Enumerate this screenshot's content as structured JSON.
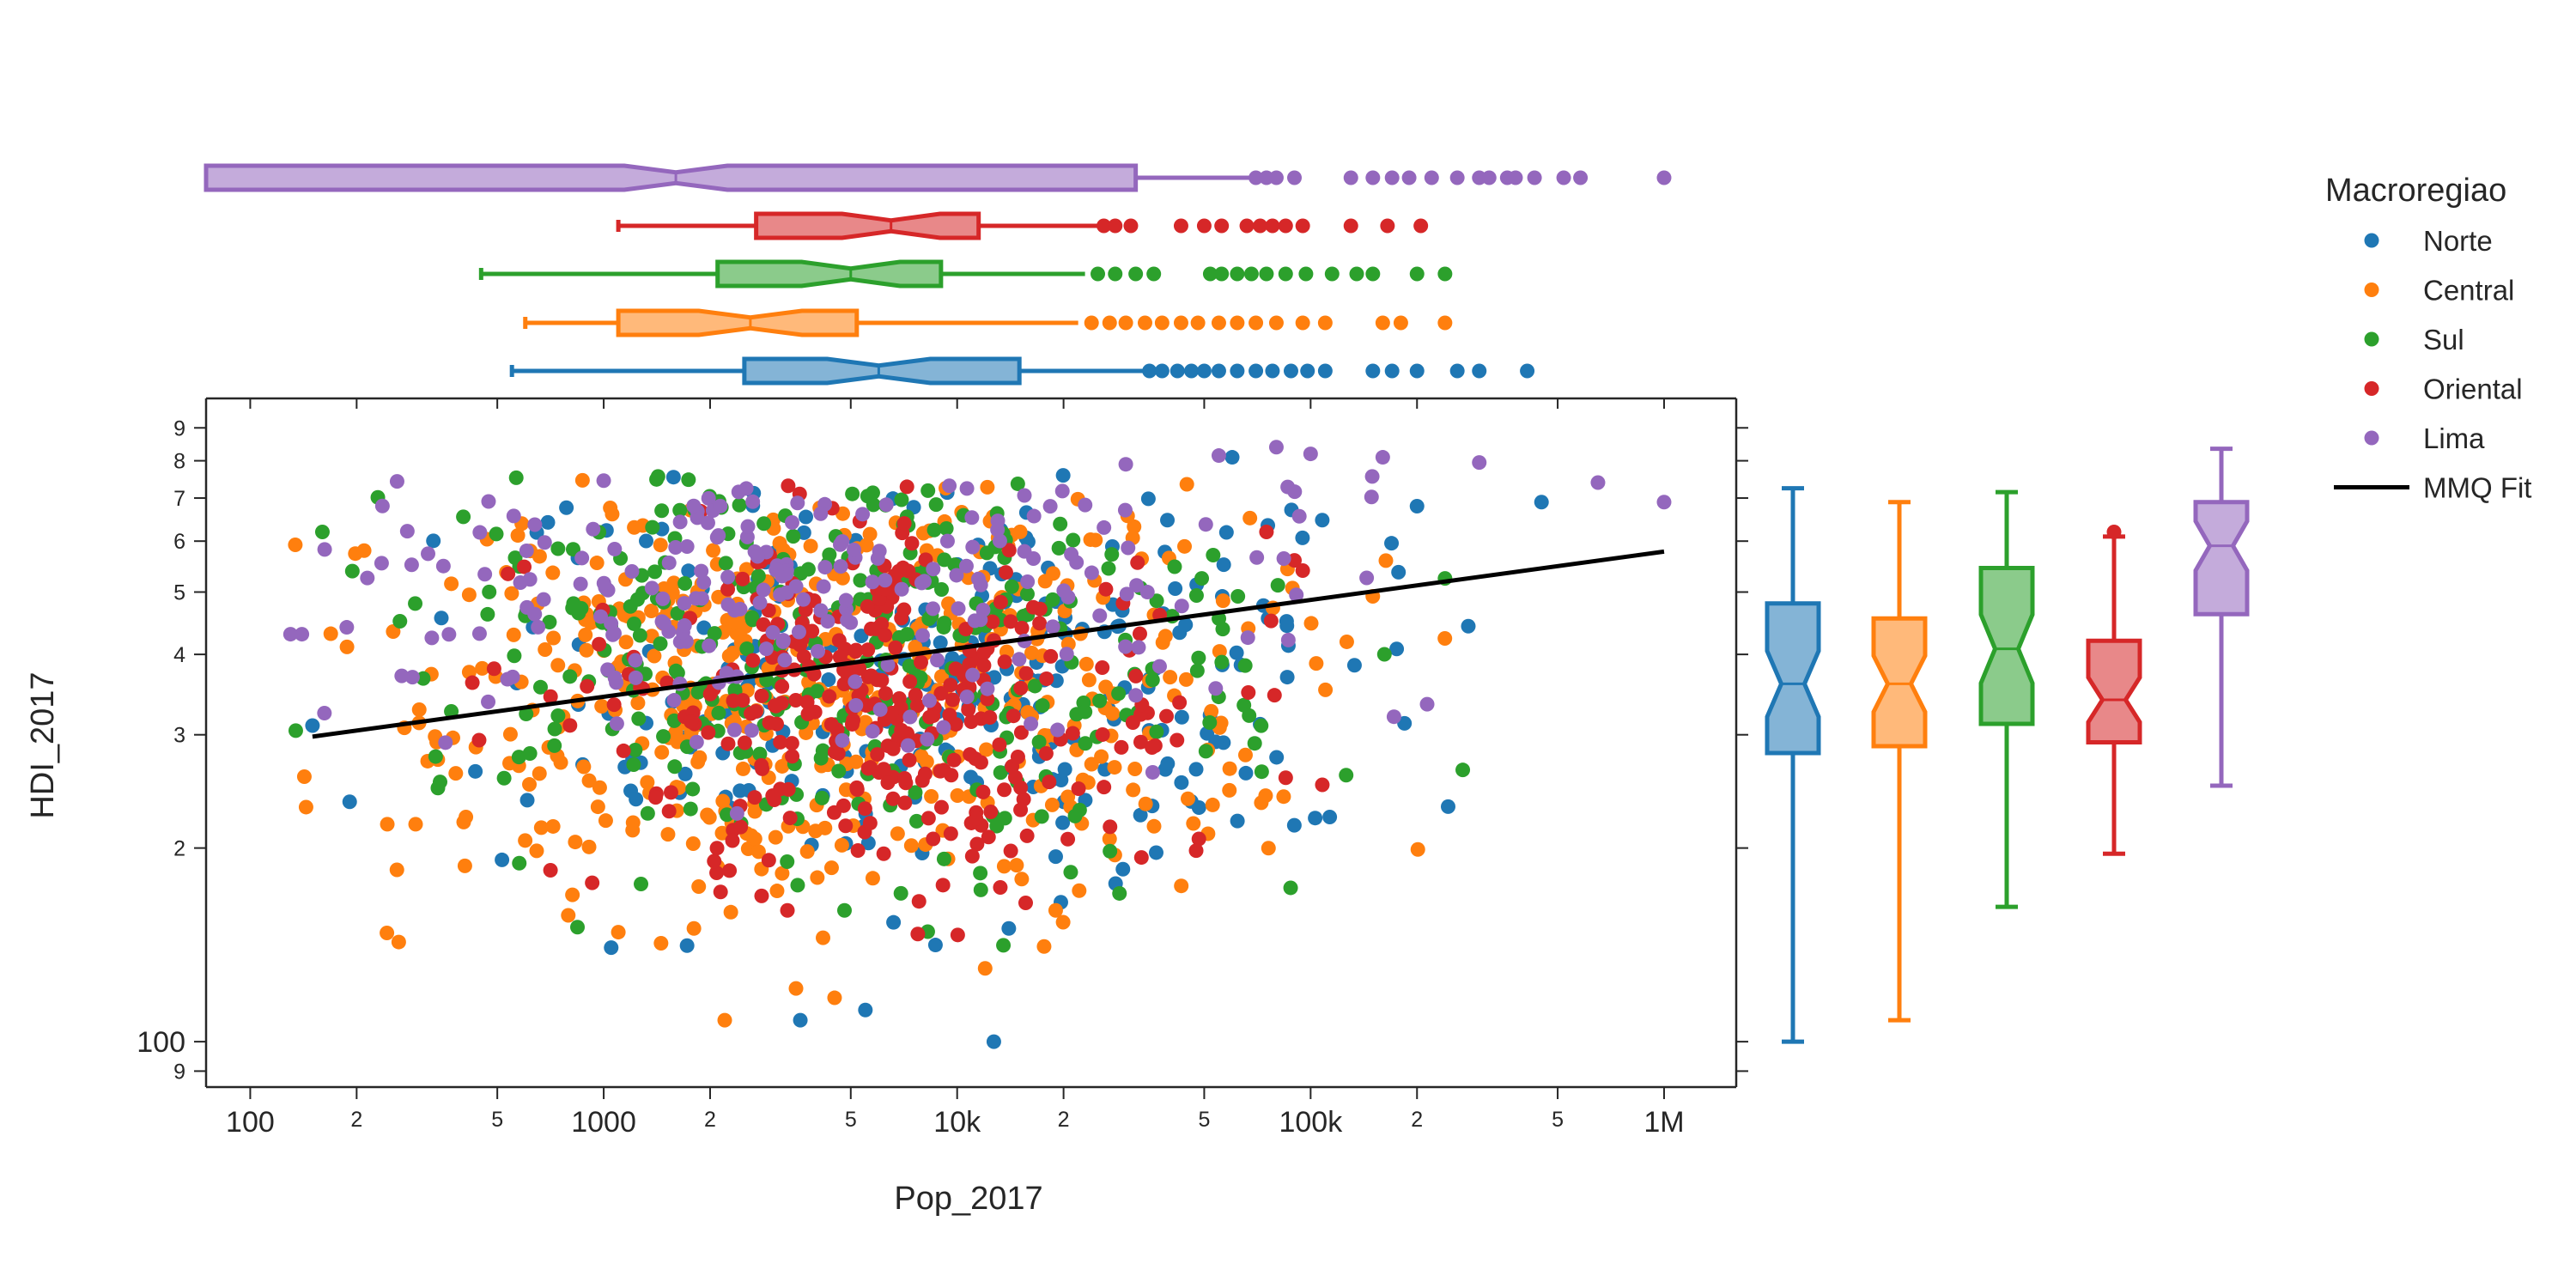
{
  "chart_data": {
    "type": "scatter",
    "xlabel": "Pop_2017",
    "ylabel": "HDI_2017",
    "x_scale": "log",
    "y_scale": "log",
    "xlim": [
      75,
      1600000
    ],
    "ylim": [
      85,
      1000
    ],
    "x_major_ticks": [
      {
        "value": 100,
        "label": "100"
      },
      {
        "value": 1000,
        "label": "1000"
      },
      {
        "value": 10000,
        "label": "10k"
      },
      {
        "value": 100000,
        "label": "100k"
      },
      {
        "value": 1000000,
        "label": "1M"
      }
    ],
    "x_minor_ticks": [
      {
        "value": 200,
        "label": "2"
      },
      {
        "value": 500,
        "label": "5"
      },
      {
        "value": 2000,
        "label": "2"
      },
      {
        "value": 5000,
        "label": "5"
      },
      {
        "value": 20000,
        "label": "2"
      },
      {
        "value": 50000,
        "label": "5"
      },
      {
        "value": 200000,
        "label": "2"
      },
      {
        "value": 500000,
        "label": "5"
      }
    ],
    "y_major_ticks": [
      {
        "value": 100,
        "label": "100"
      }
    ],
    "y_minor_ticks": [
      {
        "value": 90,
        "label": "9"
      },
      {
        "value": 200,
        "label": "2"
      },
      {
        "value": 300,
        "label": "3"
      },
      {
        "value": 400,
        "label": "4"
      },
      {
        "value": 500,
        "label": "5"
      },
      {
        "value": 600,
        "label": "6"
      },
      {
        "value": 700,
        "label": "7"
      },
      {
        "value": 800,
        "label": "8"
      },
      {
        "value": 900,
        "label": "9"
      }
    ],
    "legend": {
      "title": "Macroregiao",
      "placement": "right",
      "fit_label": "MMQ Fit"
    },
    "fit_line": {
      "x": [
        150,
        1000000
      ],
      "y": [
        298,
        578
      ],
      "color": "#000000"
    },
    "series": [
      {
        "name": "Norte",
        "color": "#1f77b4",
        "x_center": 9000,
        "x_spread": 0.65,
        "y_center": 380,
        "y_spread": 0.17,
        "outliers": [
          [
            5500,
            112
          ],
          [
            3600,
            108
          ],
          [
            12700,
            100
          ],
          [
            150,
            310
          ],
          [
            1050,
            140
          ],
          [
            14000,
            150
          ],
          [
            33000,
            225
          ],
          [
            15000,
            330
          ],
          [
            60000,
            810
          ],
          [
            200000,
            680
          ],
          [
            450000,
            690
          ]
        ],
        "box_x": {
          "whislo": 550,
          "q1": 2500,
          "med": 6000,
          "q3": 15000,
          "whishi": 35000,
          "fliers": [
            35000,
            38000,
            42000,
            46000,
            50000,
            55000,
            62000,
            70000,
            78000,
            88000,
            98000,
            110000,
            150000,
            170000,
            200000,
            260000,
            300000,
            410000
          ]
        },
        "box_y": {
          "whislo": 100,
          "q1": 281,
          "med": 360,
          "q3": 480,
          "whishi": 725,
          "fliers": []
        }
      },
      {
        "name": "Central",
        "color": "#ff7f0e",
        "x_center": 4000,
        "x_spread": 0.65,
        "y_center": 360,
        "y_spread": 0.18,
        "outliers": [
          [
            2200,
            108
          ],
          [
            3500,
            121
          ],
          [
            4500,
            117
          ],
          [
            12000,
            130
          ],
          [
            19000,
            160
          ],
          [
            1800,
            150
          ],
          [
            1100,
            148
          ],
          [
            260,
            185
          ],
          [
            24000,
            270
          ]
        ],
        "box_x": {
          "whislo": 600,
          "q1": 1100,
          "med": 2600,
          "q3": 5200,
          "whishi": 22000,
          "fliers": [
            24000,
            27000,
            30000,
            34000,
            38000,
            43000,
            48000,
            55000,
            62000,
            70000,
            80000,
            95000,
            110000,
            160000,
            180000,
            240000
          ]
        },
        "box_y": {
          "whislo": 108,
          "q1": 288,
          "med": 360,
          "q3": 455,
          "whishi": 690,
          "fliers": []
        }
      },
      {
        "name": "Sul",
        "color": "#2ca02c",
        "x_center": 5000,
        "x_spread": 0.6,
        "y_center": 400,
        "y_spread": 0.17,
        "outliers": [
          [
            160,
            620
          ],
          [
            4800,
            160
          ],
          [
            240000,
            525
          ]
        ],
        "box_x": {
          "whislo": 450,
          "q1": 2100,
          "med": 5000,
          "q3": 9000,
          "whishi": 23000,
          "fliers": [
            25000,
            28000,
            32000,
            36000,
            52000,
            56000,
            62000,
            68000,
            75000,
            85000,
            97000,
            115000,
            135000,
            150000,
            200000,
            240000
          ]
        },
        "box_y": {
          "whislo": 162,
          "q1": 312,
          "med": 408,
          "q3": 545,
          "whishi": 715,
          "fliers": []
        }
      },
      {
        "name": "Oriental",
        "color": "#d62728",
        "x_center": 5800,
        "x_spread": 0.42,
        "y_center": 340,
        "y_spread": 0.14,
        "outliers": [
          [
            75000,
            620
          ],
          [
            90000,
            560
          ],
          [
            95000,
            540
          ]
        ],
        "box_x": {
          "whislo": 1100,
          "q1": 2700,
          "med": 6500,
          "q3": 11500,
          "whishi": 26000,
          "fliers": [
            26000,
            28000,
            31000,
            43000,
            50000,
            56000,
            66000,
            72000,
            78000,
            85000,
            95000,
            130000,
            165000,
            205000
          ]
        },
        "box_y": {
          "whislo": 196,
          "q1": 292,
          "med": 340,
          "q3": 420,
          "whishi": 610,
          "fliers": [
            620
          ]
        }
      },
      {
        "name": "Lima",
        "color": "#9467bd",
        "x_center": 3000,
        "x_spread": 0.7,
        "y_center": 520,
        "y_spread": 0.13,
        "outliers": [
          [
            130,
            430
          ],
          [
            140,
            430
          ],
          [
            1000000,
            690
          ],
          [
            650000,
            740
          ],
          [
            300000,
            795
          ],
          [
            55000,
            815
          ],
          [
            80000,
            840
          ],
          [
            100000,
            820
          ],
          [
            160000,
            810
          ],
          [
            30000,
            790
          ],
          [
            1000,
            745
          ]
        ],
        "box_x": {
          "whislo": 75,
          "q1": 75,
          "med": 1600,
          "q3": 32000,
          "whishi": 70000,
          "fliers": [
            70000,
            75000,
            80000,
            90000,
            130000,
            150000,
            170000,
            190000,
            220000,
            260000,
            300000,
            320000,
            360000,
            380000,
            430000,
            520000,
            580000,
            1000000
          ]
        },
        "box_y": {
          "whislo": 250,
          "q1": 462,
          "med": 590,
          "q3": 690,
          "whishi": 835,
          "fliers": []
        }
      }
    ]
  }
}
